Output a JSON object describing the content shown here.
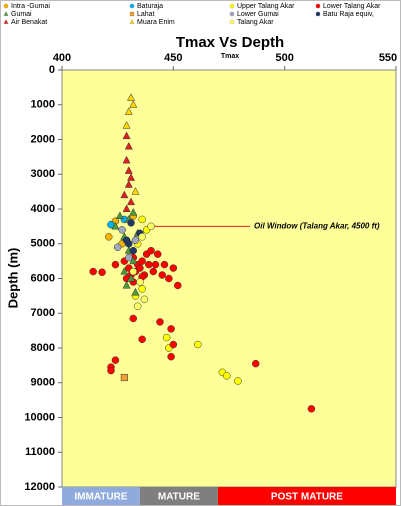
{
  "chart_data": {
    "type": "scatter",
    "title": "Tmax Vs Depth",
    "x_label": "Tmax",
    "y_label": "Depth (m)",
    "xlim": [
      400,
      550
    ],
    "xticks": [
      400,
      450,
      500,
      550
    ],
    "ylim": [
      12000,
      0
    ],
    "yticks": [
      0,
      1000,
      2000,
      3000,
      4000,
      5000,
      6000,
      7000,
      8000,
      9000,
      10000,
      11000,
      12000
    ],
    "plot_background": "#ffff99",
    "annotations": [
      {
        "text": "Oil Window (Talang Akar, 4500 ft)",
        "y": 4500,
        "color": "#e02020"
      }
    ],
    "zones": [
      {
        "label": "IMMATURE",
        "from": 400,
        "to": 435,
        "color": "#8faadc"
      },
      {
        "label": "MATURE",
        "from": 435,
        "to": 470,
        "color": "#7f7f7f"
      },
      {
        "label": "POST MATURE",
        "from": 470,
        "to": 550,
        "color": "#ff0000"
      }
    ],
    "series": [
      {
        "name": "Intra -Gumai",
        "marker": "circle",
        "color": "#f4b400",
        "x": [
          421,
          424,
          427,
          432
        ],
        "values": [
          4800,
          4350,
          5000,
          4200
        ]
      },
      {
        "name": "Baturaja",
        "marker": "circle",
        "color": "#00b0f0",
        "x": [
          422,
          428
        ],
        "values": [
          4450,
          4300
        ]
      },
      {
        "name": "Upper Talang Akar",
        "marker": "circle",
        "color": "#ffff00",
        "x": [
          436,
          438,
          434,
          436,
          433,
          447,
          448,
          461,
          472,
          474,
          479
        ],
        "values": [
          4300,
          4600,
          5000,
          6300,
          6500,
          7700,
          8000,
          7900,
          8700,
          8800,
          8950
        ]
      },
      {
        "name": "Lower Talang Akar",
        "marker": "circle",
        "color": "#ff0000",
        "x": [
          414,
          418,
          424,
          428,
          430,
          432,
          434,
          436,
          438,
          440,
          442,
          443,
          445,
          446,
          448,
          450,
          452,
          431,
          433,
          435,
          437,
          439,
          441,
          429,
          432,
          436,
          432,
          436,
          444,
          449,
          450,
          449,
          424,
          422,
          422,
          487,
          512
        ],
        "values": [
          5800,
          5820,
          5600,
          5500,
          5700,
          5400,
          5600,
          5500,
          5300,
          5200,
          5600,
          5300,
          5900,
          5600,
          6000,
          5700,
          6200,
          5900,
          5800,
          5700,
          5900,
          5600,
          5800,
          6000,
          6100,
          5950,
          7150,
          7750,
          7250,
          7450,
          7900,
          8250,
          8350,
          8550,
          8650,
          8450,
          9750
        ]
      },
      {
        "name": "Gumai",
        "marker": "triangle",
        "color": "#4e9a3a",
        "x": [
          426,
          430,
          432,
          424,
          428,
          434,
          430,
          432,
          428,
          431,
          429,
          433
        ],
        "values": [
          4200,
          4300,
          4100,
          4500,
          4800,
          4700,
          5200,
          5500,
          5800,
          6000,
          6200,
          6400
        ]
      },
      {
        "name": "Lahat",
        "marker": "square",
        "color": "#f0a030",
        "x": [
          428
        ],
        "values": [
          8850
        ]
      },
      {
        "name": "Lower Gumai",
        "marker": "circle",
        "color": "#a0a8c0",
        "x": [
          427,
          433,
          425,
          430
        ],
        "values": [
          4600,
          4900,
          5100,
          5400
        ]
      },
      {
        "name": "Batu Raja equiv,",
        "marker": "circle",
        "color": "#1f3864",
        "x": [
          431,
          429,
          432,
          435,
          430
        ],
        "values": [
          4400,
          4900,
          5200,
          4700,
          5000
        ]
      },
      {
        "name": "Air Benakat",
        "marker": "triangle",
        "color": "#e02020",
        "x": [
          429,
          430,
          429,
          430,
          431,
          430,
          428,
          431,
          429
        ],
        "values": [
          1900,
          2200,
          2600,
          2900,
          3100,
          3300,
          3600,
          3800,
          4000
        ]
      },
      {
        "name": "Muara Enim",
        "marker": "triangle",
        "color": "#ffd700",
        "x": [
          431,
          432,
          430,
          429,
          433
        ],
        "values": [
          800,
          1000,
          1200,
          1600,
          3500
        ]
      },
      {
        "name": "Talang Akar",
        "marker": "circle",
        "color": "#ffff66",
        "x": [
          436,
          440,
          432,
          435,
          437,
          434
        ],
        "values": [
          4800,
          4500,
          5800,
          6100,
          6600,
          6800
        ]
      }
    ]
  }
}
